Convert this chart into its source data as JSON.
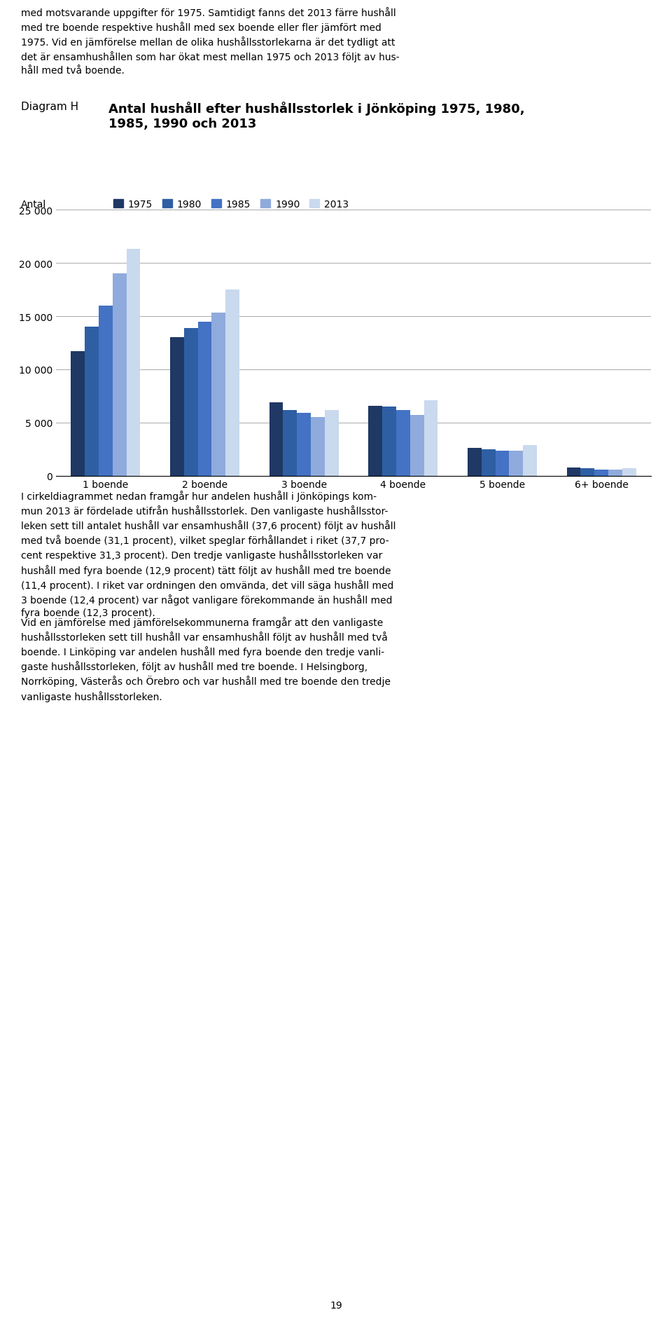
{
  "diagram_label": "Diagram H",
  "title": "Antal hushåll efter hushållsstorlek i Jönköping 1975, 1980,\n1985, 1990 och 2013",
  "ylabel": "Antal",
  "ylim": [
    0,
    25000
  ],
  "yticks": [
    0,
    5000,
    10000,
    15000,
    20000,
    25000
  ],
  "ytick_labels": [
    "0",
    "5 000",
    "10 000",
    "15 000",
    "20 000",
    "25 000"
  ],
  "categories": [
    "1 boende",
    "2 boende",
    "3 boende",
    "4 boende",
    "5 boende",
    "6+ boende"
  ],
  "years": [
    "1975",
    "1980",
    "1985",
    "1990",
    "2013"
  ],
  "colors": [
    "#1F3864",
    "#2E5FA3",
    "#4472C4",
    "#8FAADC",
    "#C9D9EE"
  ],
  "data": {
    "1975": [
      11700,
      13000,
      6900,
      6600,
      2600,
      800
    ],
    "1980": [
      14000,
      13900,
      6200,
      6500,
      2500,
      700
    ],
    "1985": [
      16000,
      14500,
      5900,
      6200,
      2350,
      600
    ],
    "1990": [
      19000,
      15300,
      5500,
      5700,
      2350,
      600
    ],
    "2013": [
      21300,
      17500,
      6200,
      7100,
      2900,
      700
    ]
  },
  "page_text_top": "med motsvarande uppgifter för 1975. Samtidigt fanns det 2013 färre hushåll\nmed tre boende respektive hushåll med sex boende eller fler jämfört med\n1975. Vid en jämförelse mellan de olika hushållsstorlekarna är det tydligt att\ndet är ensamhushållen som har ökat mest mellan 1975 och 2013 följt av hus-\nhåll med två boende.",
  "page_text_bottom1": "I cirkeldiagrammet nedan framgår hur andelen hushåll i Jönköpings kom-\nmun 2013 är fördelade utifrån hushållsstorlek. Den vanligaste hushållsstor-\nleken sett till antalet hushåll var ensamhushåll (37,6 procent) följt av hushåll\nmed två boende (31,1 procent), vilket speglar förhållandet i riket (37,7 pro-\ncent respektive 31,3 procent). Den tredje vanligaste hushållsstorleken var\nhushåll med fyra boende (12,9 procent) tätt följt av hushåll med tre boende\n(11,4 procent). I riket var ordningen den omvända, det vill säga hushåll med\n3 boende (12,4 procent) var något vanligare förekommande än hushåll med\nfyra boende (12,3 procent).",
  "page_text_bottom2": "Vid en jämförelse med jämförelsekommunerna framgår att den vanligaste\nhushållsstorleken sett till hushåll var ensamhushåll följt av hushåll med två\nboende. I Linköping var andelen hushåll med fyra boende den tredje vanli-\ngaste hushållsstorleken, följt av hushåll med tre boende. I Helsingborg,\nNorrköping, Västerås och Örebro och var hushåll med tre boende den tredje\nvanligaste hushållsstorleken.",
  "page_number": "19",
  "background_color": "#FFFFFF",
  "grid_color": "#AAAAAA",
  "title_fontsize": 13,
  "label_fontsize": 10,
  "tick_fontsize": 10,
  "legend_fontsize": 10,
  "text_fontsize": 10
}
